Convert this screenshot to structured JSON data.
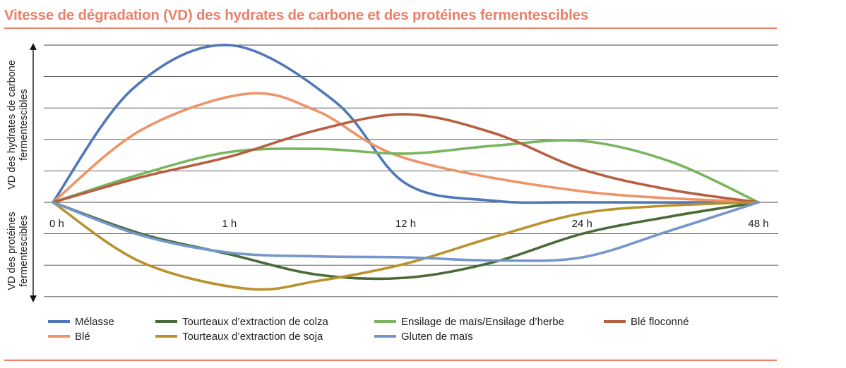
{
  "header": {
    "title": "Vitesse de dégradation (VD) des hydrates de carbone et des protéines fermentescibles"
  },
  "colors": {
    "accent": "#e8806a",
    "grid": "#4a4a4a"
  },
  "chart_data": {
    "type": "line",
    "title": "Vitesse de dégradation (VD) des hydrates de carbone et des protéines fermentescibles",
    "x_categories": [
      "0 h",
      "1 h",
      "12 h",
      "24 h",
      "48 h"
    ],
    "y_range": [
      -3,
      5
    ],
    "grid": true,
    "legend_position": "bottom",
    "y_axis": {
      "upper_label": [
        "VD des hydrates de carbone",
        "fermentescibles"
      ],
      "lower_label": [
        "VD des protéines",
        "fermentescibles"
      ]
    },
    "series": [
      {
        "name": "Mélasse",
        "color": "#4f78b8",
        "group": "carbon",
        "points": [
          [
            0,
            0
          ],
          [
            0.45,
            3.6
          ],
          [
            1,
            5
          ],
          [
            1.6,
            3.2
          ],
          [
            2,
            0.6
          ],
          [
            2.5,
            0.05
          ],
          [
            3,
            0
          ],
          [
            4,
            0
          ]
        ]
      },
      {
        "name": "Blé",
        "color": "#ee9468",
        "group": "carbon",
        "points": [
          [
            0,
            0
          ],
          [
            0.5,
            2.3
          ],
          [
            1.1,
            3.45
          ],
          [
            1.5,
            2.9
          ],
          [
            2,
            1.4
          ],
          [
            3,
            0.35
          ],
          [
            4,
            0
          ]
        ]
      },
      {
        "name": "Ensilage de maïs/Ensilage d’herbe",
        "color": "#7ab55e",
        "group": "carbon",
        "points": [
          [
            0,
            0
          ],
          [
            0.5,
            0.9
          ],
          [
            1,
            1.6
          ],
          [
            1.5,
            1.7
          ],
          [
            2,
            1.55
          ],
          [
            2.5,
            1.8
          ],
          [
            3,
            1.95
          ],
          [
            3.5,
            1.3
          ],
          [
            4,
            0
          ]
        ]
      },
      {
        "name": "Blé floconné",
        "color": "#b85f42",
        "group": "carbon",
        "points": [
          [
            0,
            0
          ],
          [
            0.5,
            0.8
          ],
          [
            1,
            1.45
          ],
          [
            1.5,
            2.3
          ],
          [
            2,
            2.8
          ],
          [
            2.5,
            2.2
          ],
          [
            3,
            1.05
          ],
          [
            3.5,
            0.4
          ],
          [
            4,
            0
          ]
        ]
      },
      {
        "name": "Tourteaux d’extraction de colza",
        "color": "#496b37",
        "group": "protein",
        "points": [
          [
            0,
            0
          ],
          [
            0.5,
            -1.0
          ],
          [
            1,
            -1.65
          ],
          [
            1.5,
            -2.3
          ],
          [
            2,
            -2.4
          ],
          [
            2.5,
            -1.9
          ],
          [
            3,
            -1.0
          ],
          [
            3.5,
            -0.45
          ],
          [
            4,
            0
          ]
        ]
      },
      {
        "name": "Tourteaux d’extraction de soja",
        "color": "#b9922e",
        "group": "protein",
        "points": [
          [
            0,
            0
          ],
          [
            0.5,
            -1.9
          ],
          [
            1.1,
            -2.75
          ],
          [
            1.5,
            -2.5
          ],
          [
            2,
            -1.95
          ],
          [
            2.5,
            -1.1
          ],
          [
            3,
            -0.35
          ],
          [
            3.5,
            -0.1
          ],
          [
            4,
            0
          ]
        ]
      },
      {
        "name": "Gluten de maïs",
        "color": "#7596cc",
        "group": "protein",
        "points": [
          [
            0,
            0
          ],
          [
            0.5,
            -1.05
          ],
          [
            1,
            -1.6
          ],
          [
            1.5,
            -1.72
          ],
          [
            2,
            -1.75
          ],
          [
            2.5,
            -1.85
          ],
          [
            3,
            -1.75
          ],
          [
            3.5,
            -0.9
          ],
          [
            4,
            0
          ]
        ]
      }
    ]
  }
}
